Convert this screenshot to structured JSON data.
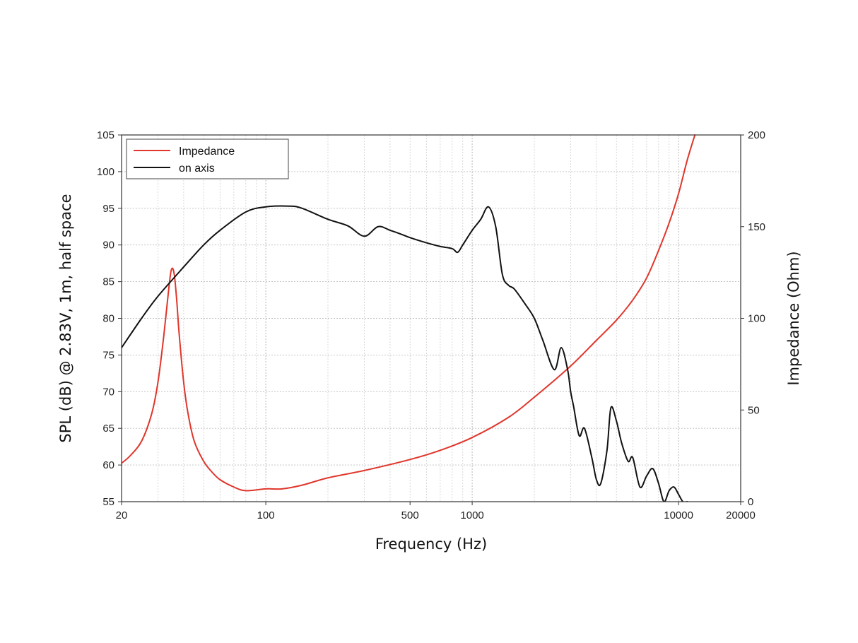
{
  "chart_data": {
    "type": "line",
    "xlabel": "Frequency (Hz)",
    "ylabel": "SPL (dB) @ 2.83V, 1m, half space",
    "y2label": "Impedance (Ohm)",
    "x_scale": "log",
    "xlim": [
      20,
      20000
    ],
    "ylim": [
      55,
      105
    ],
    "y2lim": [
      0,
      200
    ],
    "grid": true,
    "legend": "top-left",
    "x_ticks": [
      "20",
      "100",
      "500",
      "1000",
      "10000",
      "20000"
    ],
    "y_ticks": [
      "55",
      "60",
      "65",
      "70",
      "75",
      "80",
      "85",
      "90",
      "95",
      "100",
      "105"
    ],
    "y2_ticks": [
      "0",
      "50",
      "100",
      "150",
      "200"
    ],
    "series": [
      {
        "name": "Impedance",
        "axis": "right",
        "color": "#e0362b",
        "x": [
          20,
          22,
          25,
          28,
          30,
          32,
          34,
          35,
          36,
          37,
          38,
          40,
          42,
          45,
          50,
          55,
          60,
          70,
          80,
          100,
          120,
          150,
          200,
          300,
          500,
          700,
          1000,
          1500,
          2000,
          3000,
          4000,
          5000,
          6000,
          7000,
          8000,
          9000,
          10000,
          11000,
          12000
        ],
        "values": [
          21,
          25,
          33,
          48,
          65,
          90,
          118,
          127,
          124,
          110,
          92,
          65,
          48,
          33,
          22,
          16,
          12,
          8,
          6,
          7,
          7,
          9,
          13,
          17,
          23,
          28,
          35,
          46,
          57,
          74,
          88,
          99,
          110,
          122,
          137,
          152,
          168,
          186,
          200
        ]
      },
      {
        "name": "on axis",
        "axis": "left",
        "color": "#111111",
        "x": [
          20,
          25,
          30,
          40,
          50,
          60,
          80,
          100,
          130,
          150,
          200,
          250,
          300,
          350,
          400,
          450,
          500,
          600,
          700,
          800,
          850,
          900,
          1000,
          1100,
          1200,
          1300,
          1400,
          1500,
          1600,
          1800,
          2000,
          2200,
          2500,
          2700,
          2900,
          3000,
          3100,
          3300,
          3500,
          3800,
          4000,
          4200,
          4500,
          4700,
          5000,
          5300,
          5700,
          6000,
          6500,
          7000,
          7500,
          8000,
          8500,
          9000,
          9500,
          10000,
          10500,
          11000
        ],
        "values": [
          76,
          80,
          83,
          87,
          90,
          92,
          94.5,
          95.2,
          95.3,
          95,
          93.5,
          92.6,
          91.2,
          92.5,
          92,
          91.5,
          91,
          90.3,
          89.8,
          89.5,
          89,
          90,
          92,
          93.5,
          95.2,
          92.5,
          86,
          84.5,
          84,
          82,
          80,
          77,
          73,
          76,
          73,
          70,
          68,
          64,
          65,
          61,
          58,
          57.5,
          62,
          67.8,
          66,
          63,
          60.5,
          61,
          57,
          58.5,
          59.5,
          57.5,
          55,
          56.5,
          57,
          56,
          55,
          55
        ]
      }
    ]
  }
}
